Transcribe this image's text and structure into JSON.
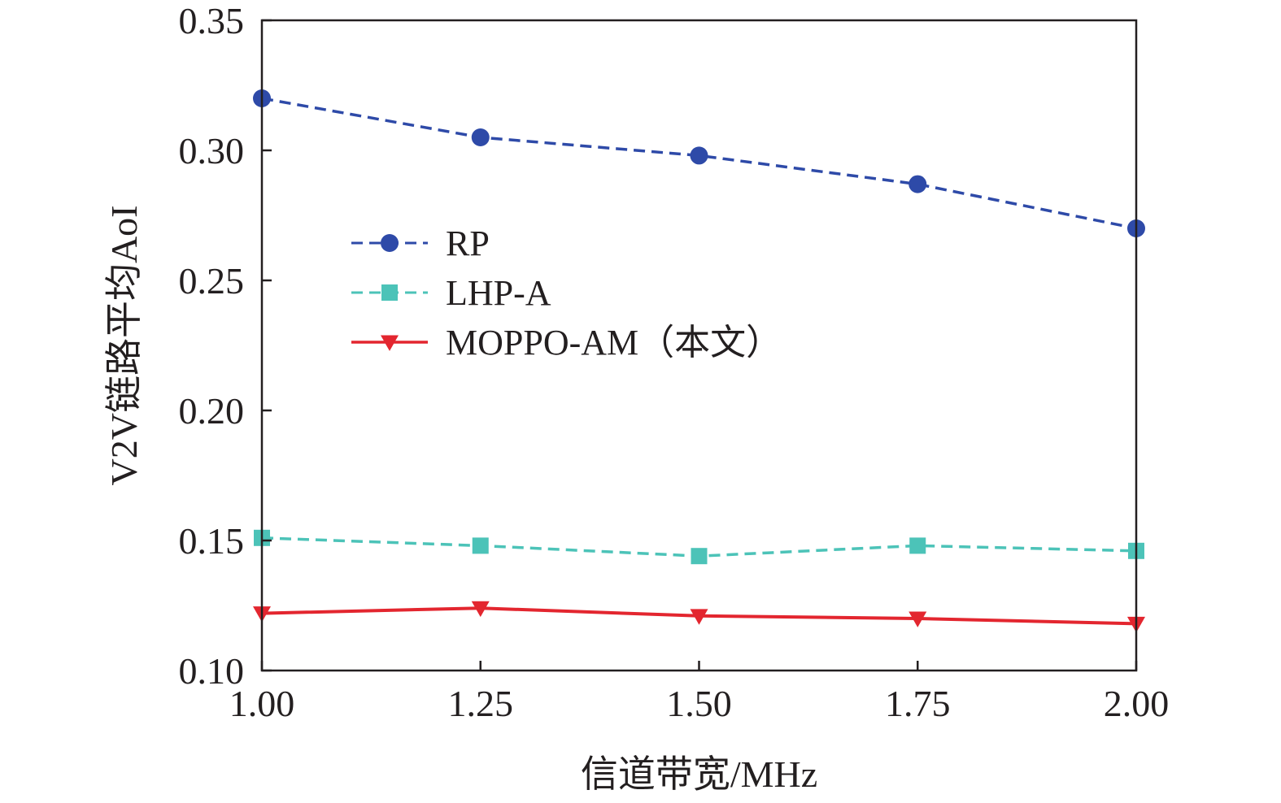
{
  "chart_data": {
    "type": "line",
    "title": "",
    "xlabel": "信道带宽/MHz",
    "ylabel": "V2V链路平均AoI",
    "xlim": [
      1.0,
      2.0
    ],
    "ylim": [
      0.1,
      0.35
    ],
    "xticks": [
      1.0,
      1.25,
      1.5,
      1.75,
      2.0
    ],
    "xtick_labels": [
      "1.00",
      "1.25",
      "1.50",
      "1.75",
      "2.00"
    ],
    "yticks": [
      0.1,
      0.15,
      0.2,
      0.25,
      0.3,
      0.35
    ],
    "ytick_labels": [
      "0.10",
      "0.15",
      "0.20",
      "0.25",
      "0.30",
      "0.35"
    ],
    "grid": false,
    "legend_position": "upper-left-center",
    "x": [
      1.0,
      1.25,
      1.5,
      1.75,
      2.0
    ],
    "series": [
      {
        "name": "RP",
        "values": [
          0.32,
          0.305,
          0.298,
          0.287,
          0.27
        ],
        "color": "#2e4aa8",
        "marker": "circle",
        "dash": true
      },
      {
        "name": "LHP-A",
        "values": [
          0.151,
          0.148,
          0.144,
          0.148,
          0.146
        ],
        "color": "#4cc3b8",
        "marker": "square",
        "dash": true
      },
      {
        "name": "MOPPO-AM（本文）",
        "values": [
          0.122,
          0.124,
          0.121,
          0.12,
          0.118
        ],
        "color": "#e3262f",
        "marker": "triangle-down",
        "dash": false
      }
    ]
  }
}
